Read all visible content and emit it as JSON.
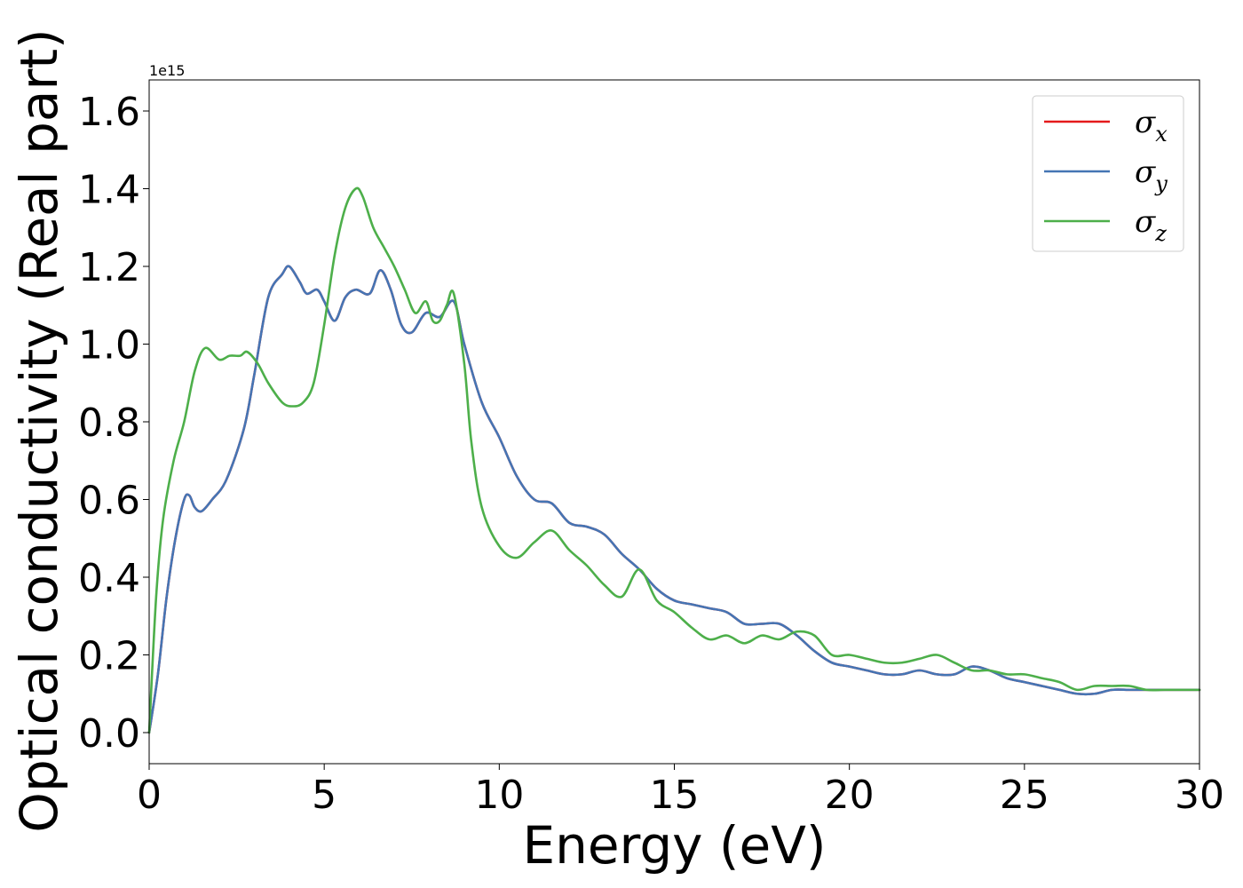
{
  "chart_data": {
    "type": "line",
    "xlabel": "Energy (eV)",
    "ylabel": "Optical conductivity (Real part)",
    "y_offset_label": "1e15",
    "xlim": [
      0,
      30
    ],
    "ylim": [
      -0.08,
      1.68
    ],
    "x_ticks": [
      0,
      5,
      10,
      15,
      20,
      25,
      30
    ],
    "x_tick_labels": [
      "0",
      "5",
      "10",
      "15",
      "20",
      "25",
      "30"
    ],
    "y_ticks": [
      0.0,
      0.2,
      0.4,
      0.6,
      0.8,
      1.0,
      1.2,
      1.4,
      1.6
    ],
    "y_tick_labels": [
      "0.0",
      "0.2",
      "0.4",
      "0.6",
      "0.8",
      "1.0",
      "1.2",
      "1.4",
      "1.6"
    ],
    "grid": false,
    "legend_position": "top-right",
    "series": [
      {
        "name": "σx",
        "symbol": "σ",
        "subscript": "x",
        "color": "#e41a1c",
        "x": [
          0,
          0.25,
          0.5,
          0.75,
          1.0,
          1.15,
          1.3,
          1.5,
          1.8,
          2.2,
          2.7,
          3.0,
          3.4,
          3.8,
          4.0,
          4.3,
          4.5,
          4.8,
          5.0,
          5.3,
          5.6,
          5.9,
          6.3,
          6.6,
          6.9,
          7.2,
          7.5,
          7.9,
          8.3,
          8.7,
          9.0,
          9.5,
          10.0,
          10.5,
          11.0,
          11.5,
          12.0,
          12.5,
          13.0,
          13.5,
          14.0,
          14.5,
          15.0,
          15.5,
          16.0,
          16.5,
          17.0,
          17.5,
          18.0,
          18.5,
          19.0,
          19.5,
          20.0,
          20.5,
          21.0,
          21.5,
          22.0,
          22.5,
          23.0,
          23.5,
          24.0,
          24.5,
          25.0,
          25.5,
          26.0,
          26.5,
          27.0,
          27.5,
          28.0,
          28.5,
          29.0,
          29.5,
          30.0
        ],
        "values": [
          0.0,
          0.15,
          0.35,
          0.5,
          0.6,
          0.61,
          0.58,
          0.57,
          0.6,
          0.65,
          0.78,
          0.92,
          1.12,
          1.18,
          1.2,
          1.16,
          1.13,
          1.14,
          1.11,
          1.06,
          1.12,
          1.14,
          1.13,
          1.19,
          1.14,
          1.05,
          1.03,
          1.08,
          1.07,
          1.11,
          1.0,
          0.85,
          0.76,
          0.66,
          0.6,
          0.59,
          0.54,
          0.53,
          0.51,
          0.46,
          0.42,
          0.37,
          0.34,
          0.33,
          0.32,
          0.31,
          0.28,
          0.28,
          0.28,
          0.25,
          0.21,
          0.18,
          0.17,
          0.16,
          0.15,
          0.15,
          0.16,
          0.15,
          0.15,
          0.17,
          0.16,
          0.14,
          0.13,
          0.12,
          0.11,
          0.1,
          0.1,
          0.11,
          0.11,
          0.11,
          0.11,
          0.11,
          0.11
        ]
      },
      {
        "name": "σy",
        "symbol": "σ",
        "subscript": "y",
        "color": "#4575b4",
        "x": [
          0,
          0.25,
          0.5,
          0.75,
          1.0,
          1.15,
          1.3,
          1.5,
          1.8,
          2.2,
          2.7,
          3.0,
          3.4,
          3.8,
          4.0,
          4.3,
          4.5,
          4.8,
          5.0,
          5.3,
          5.6,
          5.9,
          6.3,
          6.6,
          6.9,
          7.2,
          7.5,
          7.9,
          8.3,
          8.7,
          9.0,
          9.5,
          10.0,
          10.5,
          11.0,
          11.5,
          12.0,
          12.5,
          13.0,
          13.5,
          14.0,
          14.5,
          15.0,
          15.5,
          16.0,
          16.5,
          17.0,
          17.5,
          18.0,
          18.5,
          19.0,
          19.5,
          20.0,
          20.5,
          21.0,
          21.5,
          22.0,
          22.5,
          23.0,
          23.5,
          24.0,
          24.5,
          25.0,
          25.5,
          26.0,
          26.5,
          27.0,
          27.5,
          28.0,
          28.5,
          29.0,
          29.5,
          30.0
        ],
        "values": [
          0.0,
          0.15,
          0.35,
          0.5,
          0.6,
          0.61,
          0.58,
          0.57,
          0.6,
          0.65,
          0.78,
          0.92,
          1.12,
          1.18,
          1.2,
          1.16,
          1.13,
          1.14,
          1.11,
          1.06,
          1.12,
          1.14,
          1.13,
          1.19,
          1.14,
          1.05,
          1.03,
          1.08,
          1.07,
          1.11,
          1.0,
          0.85,
          0.76,
          0.66,
          0.6,
          0.59,
          0.54,
          0.53,
          0.51,
          0.46,
          0.42,
          0.37,
          0.34,
          0.33,
          0.32,
          0.31,
          0.28,
          0.28,
          0.28,
          0.25,
          0.21,
          0.18,
          0.17,
          0.16,
          0.15,
          0.15,
          0.16,
          0.15,
          0.15,
          0.17,
          0.16,
          0.14,
          0.13,
          0.12,
          0.11,
          0.1,
          0.1,
          0.11,
          0.11,
          0.11,
          0.11,
          0.11,
          0.11
        ]
      },
      {
        "name": "σz",
        "symbol": "σ",
        "subscript": "z",
        "color": "#4daf4a",
        "x": [
          0,
          0.2,
          0.4,
          0.7,
          1.0,
          1.3,
          1.6,
          2.0,
          2.3,
          2.6,
          2.8,
          3.1,
          3.4,
          3.8,
          4.1,
          4.4,
          4.7,
          5.0,
          5.3,
          5.6,
          5.9,
          6.1,
          6.4,
          6.7,
          7.0,
          7.3,
          7.6,
          7.9,
          8.1,
          8.3,
          8.5,
          8.7,
          9.0,
          9.2,
          9.5,
          10.0,
          10.5,
          11.0,
          11.5,
          12.0,
          12.5,
          13.0,
          13.5,
          14.0,
          14.5,
          15.0,
          15.5,
          16.0,
          16.5,
          17.0,
          17.5,
          18.0,
          18.5,
          19.0,
          19.5,
          20.0,
          20.5,
          21.0,
          21.5,
          22.0,
          22.5,
          23.0,
          23.5,
          24.0,
          24.5,
          25.0,
          25.5,
          26.0,
          26.5,
          27.0,
          27.5,
          28.0,
          28.5,
          29.0,
          29.5,
          30.0
        ],
        "values": [
          0.0,
          0.35,
          0.55,
          0.7,
          0.8,
          0.93,
          0.99,
          0.96,
          0.97,
          0.97,
          0.98,
          0.95,
          0.9,
          0.85,
          0.84,
          0.85,
          0.9,
          1.05,
          1.23,
          1.35,
          1.4,
          1.38,
          1.3,
          1.25,
          1.2,
          1.14,
          1.08,
          1.11,
          1.06,
          1.06,
          1.1,
          1.13,
          0.95,
          0.75,
          0.58,
          0.48,
          0.45,
          0.49,
          0.52,
          0.47,
          0.43,
          0.38,
          0.35,
          0.42,
          0.34,
          0.31,
          0.27,
          0.24,
          0.25,
          0.23,
          0.25,
          0.24,
          0.26,
          0.25,
          0.2,
          0.2,
          0.19,
          0.18,
          0.18,
          0.19,
          0.2,
          0.18,
          0.16,
          0.16,
          0.15,
          0.15,
          0.14,
          0.13,
          0.11,
          0.12,
          0.12,
          0.12,
          0.11,
          0.11,
          0.11,
          0.11
        ]
      }
    ]
  }
}
